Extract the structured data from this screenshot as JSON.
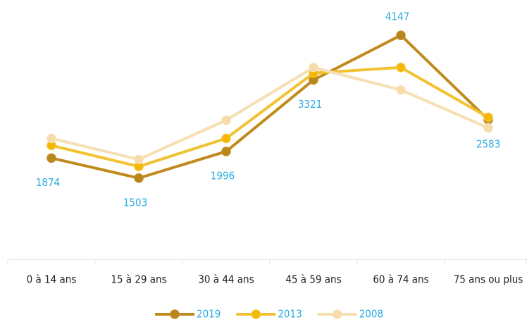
{
  "chart_data": {
    "type": "line",
    "categories": [
      "0 à 14 ans",
      "15 à 29 ans",
      "30 à 44 ans",
      "45 à 59 ans",
      "60 à 74 ans",
      "75 ans ou plus"
    ],
    "ylim": [
      0,
      4800
    ],
    "legend": "bottom",
    "series": [
      {
        "name": "2019",
        "color": "#c08a1e",
        "marker_color": "#b8861a",
        "data_labels": true,
        "values": [
          1874,
          1503,
          1996,
          3321,
          4147,
          2583
        ]
      },
      {
        "name": "2013",
        "color": "#f2c232",
        "marker_color": "#f5b800",
        "values": [
          2108,
          1718,
          2238,
          3447,
          3551,
          2628
        ]
      },
      {
        "name": "2008",
        "color": "#f6dfb2",
        "marker_color": "#f6dcaa",
        "values": [
          2238,
          1848,
          2576,
          3551,
          3135,
          2433
        ]
      }
    ]
  }
}
